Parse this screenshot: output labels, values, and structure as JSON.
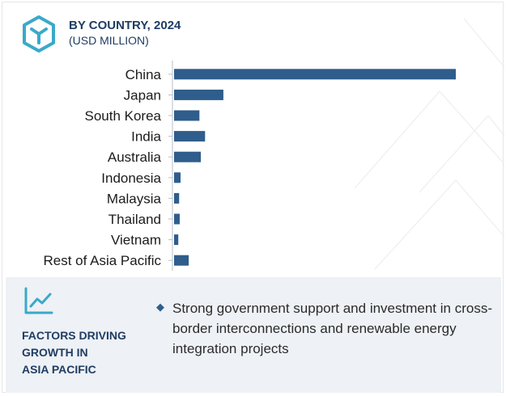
{
  "header": {
    "title": "BY COUNTRY, 2024",
    "subtitle": "(USD MILLION)",
    "logo_icon": "hexagon-cube-icon"
  },
  "chart_data": {
    "type": "bar",
    "orientation": "horizontal",
    "categories": [
      "China",
      "Japan",
      "South Korea",
      "India",
      "Australia",
      "Indonesia",
      "Malaysia",
      "Thailand",
      "Vietnam",
      "Rest of Asia Pacific"
    ],
    "values": [
      100,
      17.5,
      9,
      11,
      9.5,
      2.3,
      1.8,
      2.0,
      1.5,
      5.2
    ],
    "title": "BY COUNTRY, 2024",
    "subtitle": "(USD MILLION)",
    "xlabel": "",
    "ylabel": "",
    "xlim": [
      0,
      100
    ],
    "value_scale": "relative",
    "grid": false,
    "legend": "none",
    "bar_color": "#2f5d8c"
  },
  "factors": {
    "icon": "growth-chart-icon",
    "title_lines": [
      "FACTORS DRIVING",
      "GROWTH IN",
      "ASIA PACIFIC"
    ],
    "bullet_icon": "diamond-bullet-icon",
    "bullets": [
      "Strong government support and investment in cross-border interconnections and renewable energy integration projects"
    ]
  },
  "colors": {
    "accent": "#2f5d8c",
    "logo": "#3aa9c9",
    "heading": "#1f3d63",
    "panel": "#eef1f5"
  }
}
